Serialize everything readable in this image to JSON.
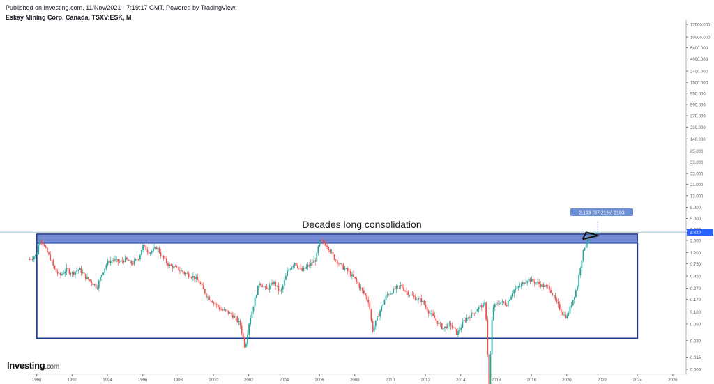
{
  "header": {
    "published": "Published on Investing.com, 11/Nov/2021 - 7:19:17 GMT, Powered by TradingView.",
    "symbol": "Eskay Mining Corp, Canada, TSXV:ESK, M"
  },
  "logo": {
    "name": "Investing",
    "suffix": ".com"
  },
  "colors": {
    "up": "#26a69a",
    "down": "#ef5350",
    "box_fill": "#5b74c9",
    "box_stroke": "#1f3a93",
    "last_price_line": "#2962ff",
    "measure_label_bg": "#6c8fd6"
  },
  "chart_data": {
    "type": "candlestick",
    "title": "Eskay Mining Corp, Canada, TSXV:ESK, M",
    "y_scale": "log",
    "y_ticks": [
      "17000.000",
      "10000.000",
      "6400.000",
      "4000.000",
      "2400.000",
      "1500.000",
      "950.000",
      "590.000",
      "370.000",
      "230.000",
      "140.000",
      "85.000",
      "53.000",
      "33.000",
      "21.000",
      "13.000",
      "8.000",
      "5.000",
      "3.200",
      "2.000",
      "1.200",
      "0.750",
      "0.450",
      "0.270",
      "0.170",
      "0.100",
      "0.060",
      "0.030",
      "0.015",
      "0.009"
    ],
    "x_ticks": [
      "1990",
      "1992",
      "1994",
      "1996",
      "1998",
      "2000",
      "2002",
      "2004",
      "2006",
      "2008",
      "2010",
      "2012",
      "2014",
      "2016",
      "2018",
      "2020",
      "2022",
      "2024",
      "2026"
    ],
    "x_range": [
      1989.5,
      2026.4
    ],
    "last_price": "2.820",
    "annotation": "Decades long consolidation",
    "measure_label": "2.193 (87.21%) 2193",
    "consolidation_box": {
      "x_start": 1990.0,
      "x_end": 2024.0,
      "y_low": 0.033,
      "y_high": 1.8
    },
    "resistance_band": {
      "x_start": 1990.0,
      "x_end": 2024.0,
      "y_low": 1.8,
      "y_high": 2.6
    },
    "price_path": [
      [
        1989.6,
        0.9
      ],
      [
        1990.0,
        1.1
      ],
      [
        1990.2,
        2.3
      ],
      [
        1990.4,
        1.6
      ],
      [
        1990.8,
        0.9
      ],
      [
        1991.0,
        0.6
      ],
      [
        1991.3,
        0.45
      ],
      [
        1991.7,
        0.6
      ],
      [
        1992.0,
        0.5
      ],
      [
        1992.4,
        0.6
      ],
      [
        1992.8,
        0.42
      ],
      [
        1993.1,
        0.35
      ],
      [
        1993.4,
        0.28
      ],
      [
        1993.7,
        0.5
      ],
      [
        1994.0,
        0.8
      ],
      [
        1994.3,
        0.9
      ],
      [
        1994.7,
        0.8
      ],
      [
        1995.0,
        0.9
      ],
      [
        1995.4,
        0.75
      ],
      [
        1995.8,
        1.0
      ],
      [
        1996.0,
        1.6
      ],
      [
        1996.4,
        1.2
      ],
      [
        1996.8,
        1.5
      ],
      [
        1997.1,
        1.0
      ],
      [
        1997.5,
        0.7
      ],
      [
        1998.0,
        0.6
      ],
      [
        1998.4,
        0.5
      ],
      [
        1998.8,
        0.45
      ],
      [
        1999.2,
        0.35
      ],
      [
        1999.6,
        0.2
      ],
      [
        2000.0,
        0.15
      ],
      [
        2000.4,
        0.11
      ],
      [
        2000.8,
        0.1
      ],
      [
        2001.2,
        0.08
      ],
      [
        2001.5,
        0.06
      ],
      [
        2001.8,
        0.022
      ],
      [
        2002.0,
        0.06
      ],
      [
        2002.3,
        0.15
      ],
      [
        2002.6,
        0.35
      ],
      [
        2003.0,
        0.25
      ],
      [
        2003.4,
        0.35
      ],
      [
        2003.8,
        0.22
      ],
      [
        2004.2,
        0.55
      ],
      [
        2004.6,
        0.8
      ],
      [
        2005.0,
        0.55
      ],
      [
        2005.4,
        0.7
      ],
      [
        2005.8,
        0.9
      ],
      [
        2006.0,
        1.9
      ],
      [
        2006.4,
        1.7
      ],
      [
        2006.8,
        1.0
      ],
      [
        2007.2,
        0.7
      ],
      [
        2007.6,
        0.55
      ],
      [
        2008.0,
        0.4
      ],
      [
        2008.4,
        0.25
      ],
      [
        2008.8,
        0.15
      ],
      [
        2009.0,
        0.045
      ],
      [
        2009.4,
        0.1
      ],
      [
        2009.8,
        0.2
      ],
      [
        2010.2,
        0.25
      ],
      [
        2010.6,
        0.3
      ],
      [
        2011.0,
        0.22
      ],
      [
        2011.4,
        0.18
      ],
      [
        2011.8,
        0.16
      ],
      [
        2012.2,
        0.1
      ],
      [
        2012.6,
        0.07
      ],
      [
        2013.0,
        0.05
      ],
      [
        2013.4,
        0.06
      ],
      [
        2013.8,
        0.04
      ],
      [
        2014.2,
        0.07
      ],
      [
        2014.6,
        0.09
      ],
      [
        2015.0,
        0.12
      ],
      [
        2015.4,
        0.14
      ],
      [
        2015.6,
        0.004
      ],
      [
        2015.8,
        0.12
      ],
      [
        2016.2,
        0.15
      ],
      [
        2016.6,
        0.14
      ],
      [
        2017.0,
        0.25
      ],
      [
        2017.4,
        0.3
      ],
      [
        2017.8,
        0.4
      ],
      [
        2018.2,
        0.35
      ],
      [
        2018.6,
        0.3
      ],
      [
        2019.0,
        0.28
      ],
      [
        2019.4,
        0.15
      ],
      [
        2019.8,
        0.09
      ],
      [
        2020.0,
        0.08
      ],
      [
        2020.3,
        0.15
      ],
      [
        2020.6,
        0.3
      ],
      [
        2020.8,
        0.8
      ],
      [
        2021.0,
        1.5
      ],
      [
        2021.2,
        2.2
      ],
      [
        2021.5,
        2.3
      ],
      [
        2021.8,
        2.6
      ]
    ]
  }
}
